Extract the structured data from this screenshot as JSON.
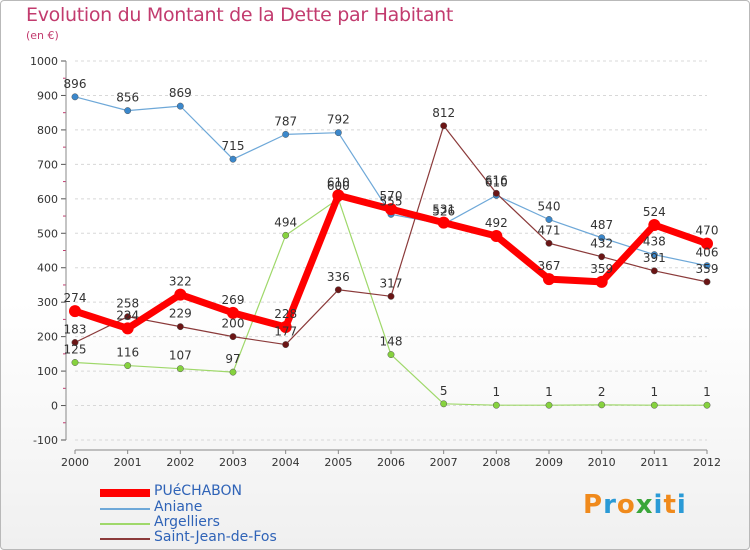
{
  "title": "Evolution du Montant de la Dette par Habitant",
  "subtitle": "(en €)",
  "logo": {
    "text": "Proxiti",
    "letters": [
      "P",
      "r",
      "o",
      "x",
      "i",
      "t",
      "i"
    ],
    "colors": [
      "#f08a1c",
      "#2a9ad6",
      "#f08a1c",
      "#3aa63a",
      "#2a9ad6",
      "#f08a1c",
      "#2a9ad6"
    ]
  },
  "chart_data": {
    "type": "line",
    "x": [
      "2000",
      "2001",
      "2002",
      "2003",
      "2004",
      "2005",
      "2006",
      "2007",
      "2008",
      "2009",
      "2010",
      "2011",
      "2012"
    ],
    "ylim": [
      -100,
      1000
    ],
    "yticks": [
      "-100",
      "0",
      "100",
      "200",
      "300",
      "400",
      "500",
      "600",
      "700",
      "800",
      "900",
      "1000"
    ],
    "ytick_values": [
      -100,
      0,
      100,
      200,
      300,
      400,
      500,
      600,
      700,
      800,
      900,
      1000
    ],
    "grid": "horizontal dashed",
    "legend": "bottom-left",
    "series": [
      {
        "name": "PUéCHABON",
        "color": "#ff0000",
        "marker": "#ff0000",
        "width": 7,
        "values": [
          274,
          224,
          322,
          269,
          228,
          610,
          570,
          531,
          492,
          367,
          359,
          524,
          470
        ],
        "labels": [
          "274",
          "224",
          "322",
          "269",
          "228",
          "610",
          "570",
          "531",
          "492",
          "367",
          "359",
          "524",
          "470"
        ]
      },
      {
        "name": "Aniane",
        "color": "#6ea8d8",
        "marker": "#3b88cc",
        "width": 1.2,
        "values": [
          896,
          856,
          869,
          715,
          787,
          792,
          555,
          526,
          610,
          540,
          487,
          438,
          406
        ],
        "labels": [
          "896",
          "856",
          "869",
          "715",
          "787",
          "792",
          "555",
          "526",
          "610",
          "540",
          "487",
          "438",
          "406"
        ]
      },
      {
        "name": "Argelliers",
        "color": "#9fd86a",
        "marker": "#86d23e",
        "width": 1.2,
        "values": [
          125,
          116,
          107,
          97,
          494,
          600,
          148,
          5,
          1,
          1,
          2,
          1,
          1
        ],
        "labels": [
          "125",
          "116",
          "107",
          "97",
          "494",
          "600",
          "148",
          "5",
          "1",
          "1",
          "2",
          "1",
          "1"
        ]
      },
      {
        "name": "Saint-Jean-de-Fos",
        "color": "#8b3a3a",
        "marker": "#6b1515",
        "width": 1.2,
        "values": [
          183,
          258,
          229,
          200,
          177,
          336,
          317,
          812,
          616,
          471,
          432,
          391,
          359
        ],
        "labels": [
          "183",
          "258",
          "229",
          "200",
          "177",
          "336",
          "317",
          "812",
          "616",
          "471",
          "432",
          "391",
          "359"
        ]
      }
    ]
  }
}
